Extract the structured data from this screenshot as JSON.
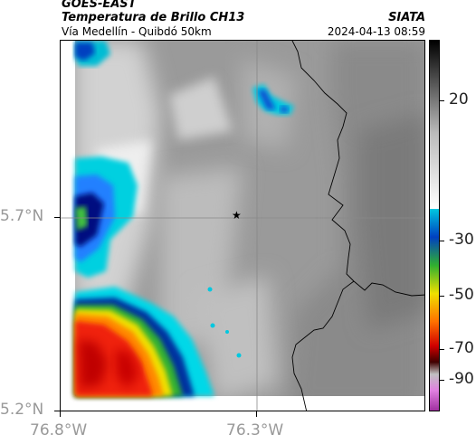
{
  "header": {
    "satellite": "GOES-EAST",
    "product": "Temperatura de Brillo CH13",
    "region": "Vía Medellín - Quibdó 50km",
    "agency": "SIATA",
    "datetime": "2024-04-13 08:59"
  },
  "map": {
    "lat_ticks": [
      "5.7°N",
      "5.2°N"
    ],
    "lon_ticks": [
      "76.8°W",
      "76.3°W"
    ],
    "marker_icon": "star-icon"
  },
  "colorbar": {
    "labels": [
      "20",
      "-30",
      "-50",
      "-70",
      "-90"
    ]
  }
}
